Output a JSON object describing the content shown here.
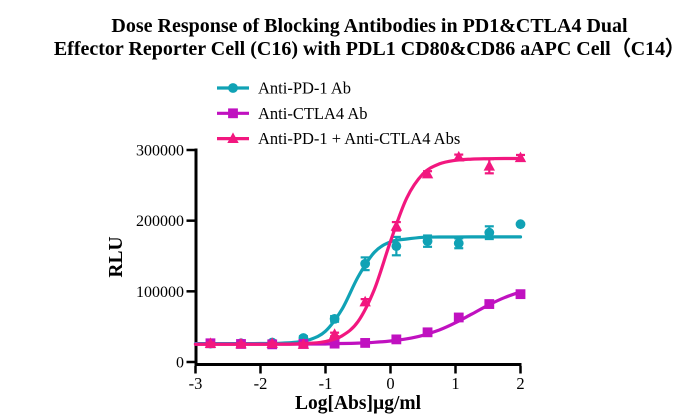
{
  "title": {
    "line1": "Dose Response of Blocking Antibodies in PD1&CTLA4 Dual",
    "line2": "Effector Reporter Cell (C16)  with PDL1 CD80&CD86 aAPC Cell（C14）"
  },
  "chart_data": {
    "type": "scatter",
    "title": "Dose Response of Blocking Antibodies in PD1&CTLA4 Dual Effector Reporter Cell (C16) with PDL1 CD80&CD86 aAPC Cell（C14）",
    "xlabel": "Log[Abs]µg/ml",
    "ylabel": "RLU",
    "xlim": [
      -3,
      2
    ],
    "ylim": [
      0,
      300000
    ],
    "xticks": [
      -3,
      -2,
      -1,
      0,
      1,
      2
    ],
    "xtick_labels": [
      "-3",
      "-2",
      "-1",
      "0",
      "1",
      "2"
    ],
    "yticks": [
      0,
      100000,
      200000,
      300000
    ],
    "ytick_labels": [
      "0",
      "100000",
      "200000",
      "300000"
    ],
    "grid": false,
    "legend_position": "top-center",
    "axis_color": "#000000",
    "x": [
      -2.77,
      -2.3,
      -1.82,
      -1.34,
      -0.86,
      -0.39,
      0.09,
      0.57,
      1.05,
      1.52,
      2.0
    ],
    "series": [
      {
        "name": "Anti-PD-1 Ab",
        "color": "#10A2B5",
        "marker": "circle",
        "values": [
          26000,
          26500,
          27500,
          34000,
          61000,
          139000,
          164000,
          171000,
          168000,
          183000,
          195000
        ],
        "errors": [
          1500,
          2000,
          2000,
          2500,
          4000,
          9000,
          13000,
          8000,
          7000,
          9000,
          0
        ],
        "fit_curve": {
          "x_start": -3,
          "x_step": 0.25,
          "y": [
            26000,
            26000,
            26010,
            26040,
            26130,
            26440,
            27570,
            31410,
            43590,
            74130,
            120230,
            155080,
            170100,
            174000,
            176430,
            176840,
            176950,
            176990,
            177000,
            177000,
            177000
          ]
        }
      },
      {
        "name": "Anti-CTLA4 Ab",
        "color": "#C011C0",
        "marker": "square",
        "values": [
          26500,
          25500,
          25000,
          25500,
          26000,
          27000,
          32000,
          42000,
          63000,
          82000,
          96000
        ],
        "errors": [
          2500,
          2000,
          2000,
          2000,
          2000,
          1500,
          2000,
          2500,
          3000,
          3500,
          3000
        ],
        "fit_curve": {
          "x_start": -3,
          "x_step": 0.25,
          "y": [
            25300,
            25310,
            25310,
            25320,
            25320,
            25340,
            25380,
            25440,
            25540,
            26110,
            26740,
            27820,
            29690,
            32810,
            37820,
            45350,
            55590,
            67780,
            80220,
            91020,
            99180
          ]
        }
      },
      {
        "name": "Anti-PD-1 + Anti-CTLA4 Abs",
        "color": "#F2177F",
        "marker": "triangle",
        "values": [
          26000,
          25500,
          26000,
          25000,
          39000,
          85000,
          192000,
          266000,
          290000,
          277000,
          289000
        ],
        "errors": [
          1500,
          1500,
          1500,
          2000,
          2500,
          4000,
          6000,
          4000,
          3500,
          10000,
          4000
        ],
        "fit_curve": {
          "x_start": -3,
          "x_step": 0.25,
          "y": [
            25000,
            25000,
            25010,
            25020,
            25050,
            25150,
            25460,
            26370,
            29060,
            36760,
            57230,
            102400,
            170850,
            232230,
            266250,
            280310,
            285390,
            287130,
            287730,
            287920,
            288000
          ]
        }
      }
    ]
  }
}
